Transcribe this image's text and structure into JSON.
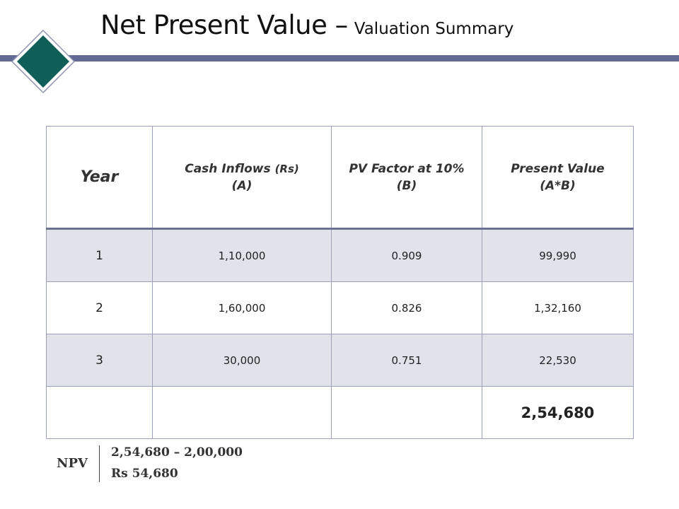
{
  "slide": {
    "title_main": "Net Present Value –",
    "title_sub": "Valuation Summary",
    "accent_color": "#636a94",
    "logo_color": "#0f5e57"
  },
  "table": {
    "headers": {
      "year": "Year",
      "cash_label": "Cash Inflows",
      "cash_unit": "(Rs)",
      "cash_tag": "(A)",
      "pv_label": "PV Factor at 10%",
      "pv_tag": "(B)",
      "present_label": "Present Value",
      "present_tag": "(A*B)"
    },
    "rows": [
      {
        "year": "1",
        "cash": "1,10,000",
        "pv": "0.909",
        "present": "99,990"
      },
      {
        "year": "2",
        "cash": "1,60,000",
        "pv": "0.826",
        "present": "1,32,160"
      },
      {
        "year": "3",
        "cash": "30,000",
        "pv": "0.751",
        "present": "22,530"
      }
    ],
    "total": "2,54,680"
  },
  "footer": {
    "label": "NPV",
    "calculation": "2,54,680 – 2,00,000",
    "result": "Rs 54,680"
  }
}
